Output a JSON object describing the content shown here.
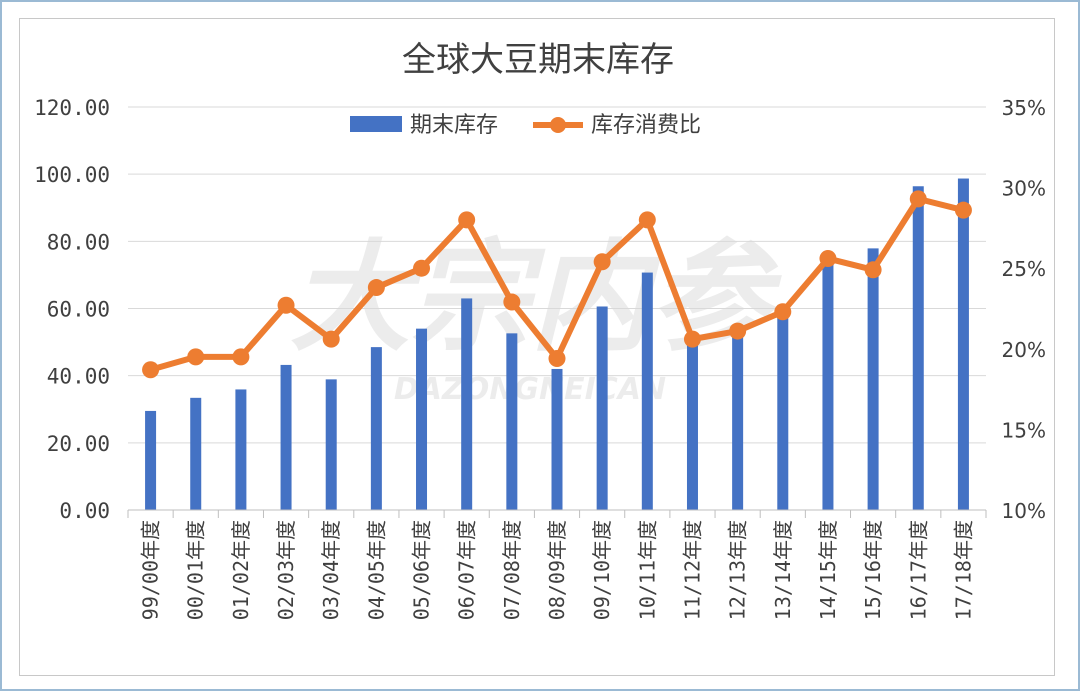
{
  "chart_data": {
    "type": "bar+line",
    "title": "全球大豆期末库存",
    "categories": [
      "99/00年度",
      "00/01年度",
      "01/02年度",
      "02/03年度",
      "03/04年度",
      "04/05年度",
      "05/06年度",
      "06/07年度",
      "07/08年度",
      "08/09年度",
      "09/10年度",
      "10/11年度",
      "11/12年度",
      "12/13年度",
      "13/14年度",
      "14/15年度",
      "15/16年度",
      "16/17年度",
      "17/18年度"
    ],
    "series": [
      {
        "name": "期末库存",
        "type": "bar",
        "axis": "left",
        "color": "#4472c4",
        "values": [
          29.5,
          33.4,
          35.9,
          43.2,
          38.9,
          48.5,
          54.0,
          63.0,
          52.6,
          42.0,
          60.6,
          70.7,
          52.5,
          55.0,
          61.0,
          74.0,
          77.9,
          96.4,
          98.7
        ]
      },
      {
        "name": "库存消费比",
        "type": "line",
        "axis": "right",
        "color": "#ed7d31",
        "values": [
          18.7,
          19.5,
          19.5,
          22.7,
          20.6,
          23.8,
          25.0,
          28.0,
          22.9,
          19.4,
          25.4,
          28.0,
          20.6,
          21.1,
          22.3,
          25.6,
          24.9,
          29.3,
          28.6
        ]
      }
    ],
    "left_axis": {
      "min": 0,
      "max": 120,
      "step": 20,
      "tick_labels": [
        "0.00",
        "20.00",
        "40.00",
        "60.00",
        "80.00",
        "100.00",
        "120.00"
      ]
    },
    "right_axis": {
      "min": 10,
      "max": 35,
      "step": 5,
      "tick_labels": [
        "10%",
        "15%",
        "20%",
        "25%",
        "30%",
        "35%"
      ]
    },
    "grid": true,
    "legend_position": "top-center",
    "watermark": "大宗内参 DAZONGNEICAN"
  }
}
